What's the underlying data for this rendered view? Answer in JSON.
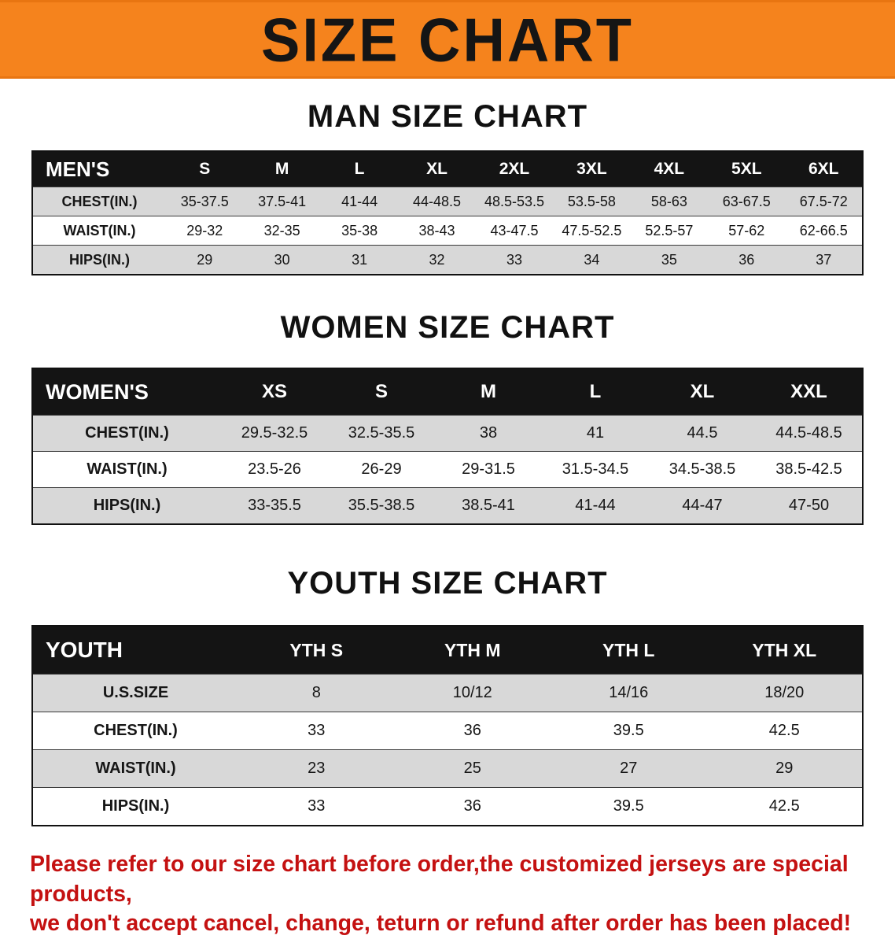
{
  "banner": {
    "title": "SIZE CHART",
    "bg_color": "#f5831d",
    "text_color": "#151515"
  },
  "sections": [
    {
      "id": "men",
      "title": "MAN SIZE CHART",
      "header": [
        "MEN'S",
        "S",
        "M",
        "L",
        "XL",
        "2XL",
        "3XL",
        "4XL",
        "5XL",
        "6XL"
      ],
      "rows": [
        {
          "label": "CHEST(IN.)",
          "values": [
            "35-37.5",
            "37.5-41",
            "41-44",
            "44-48.5",
            "48.5-53.5",
            "53.5-58",
            "58-63",
            "63-67.5",
            "67.5-72"
          ]
        },
        {
          "label": "WAIST(IN.)",
          "values": [
            "29-32",
            "32-35",
            "35-38",
            "38-43",
            "43-47.5",
            "47.5-52.5",
            "52.5-57",
            "57-62",
            "62-66.5"
          ]
        },
        {
          "label": "HIPS(IN.)",
          "values": [
            "29",
            "30",
            "31",
            "32",
            "33",
            "34",
            "35",
            "36",
            "37"
          ]
        }
      ]
    },
    {
      "id": "women",
      "title": "WOMEN SIZE CHART",
      "header": [
        "WOMEN'S",
        "XS",
        "S",
        "M",
        "L",
        "XL",
        "XXL"
      ],
      "rows": [
        {
          "label": "CHEST(IN.)",
          "values": [
            "29.5-32.5",
            "32.5-35.5",
            "38",
            "41",
            "44.5",
            "44.5-48.5"
          ]
        },
        {
          "label": "WAIST(IN.)",
          "values": [
            "23.5-26",
            "26-29",
            "29-31.5",
            "31.5-34.5",
            "34.5-38.5",
            "38.5-42.5"
          ]
        },
        {
          "label": "HIPS(IN.)",
          "values": [
            "33-35.5",
            "35.5-38.5",
            "38.5-41",
            "41-44",
            "44-47",
            "47-50"
          ]
        }
      ]
    },
    {
      "id": "youth",
      "title": "YOUTH SIZE CHART",
      "header": [
        "YOUTH",
        "YTH S",
        "YTH M",
        "YTH L",
        "YTH XL"
      ],
      "rows": [
        {
          "label": "U.S.SIZE",
          "values": [
            "8",
            "10/12",
            "14/16",
            "18/20"
          ]
        },
        {
          "label": "CHEST(IN.)",
          "values": [
            "33",
            "36",
            "39.5",
            "42.5"
          ]
        },
        {
          "label": "WAIST(IN.)",
          "values": [
            "23",
            "25",
            "27",
            "29"
          ]
        },
        {
          "label": "HIPS(IN.)",
          "values": [
            "33",
            "36",
            "39.5",
            "42.5"
          ]
        }
      ]
    }
  ],
  "footer": {
    "color": "#c41111",
    "lines": [
      "Please refer to our size chart before order,the customized jerseys are special products,",
      "we don't accept cancel, change, teturn or refund after order has been placed!"
    ]
  }
}
